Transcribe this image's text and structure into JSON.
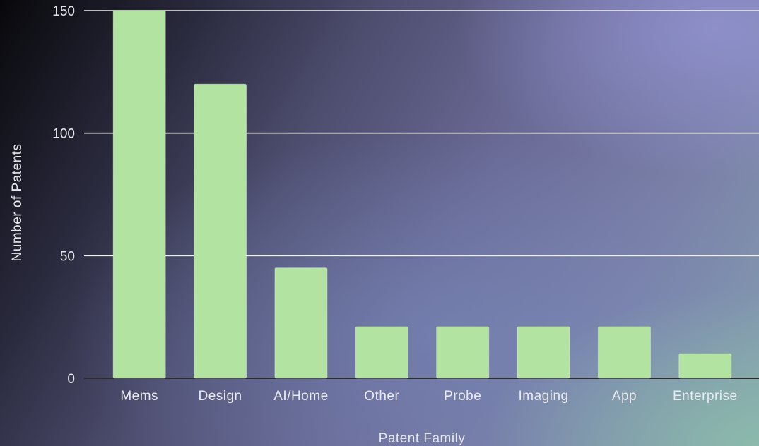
{
  "chart_data": {
    "type": "bar",
    "title": "",
    "xlabel": "Patent Family",
    "ylabel": "Number of Patents",
    "categories": [
      "Mems",
      "Design",
      "AI/Home",
      "Other",
      "Probe",
      "Imaging",
      "App",
      "Enterprise"
    ],
    "values": [
      150,
      120,
      45,
      21,
      21,
      21,
      21,
      10
    ],
    "ylim": [
      0,
      150
    ],
    "yticks": [
      0,
      50,
      100,
      150
    ],
    "grid": true,
    "bar_color": "#b3e3a0",
    "grid_color": "#f2f2f2"
  }
}
